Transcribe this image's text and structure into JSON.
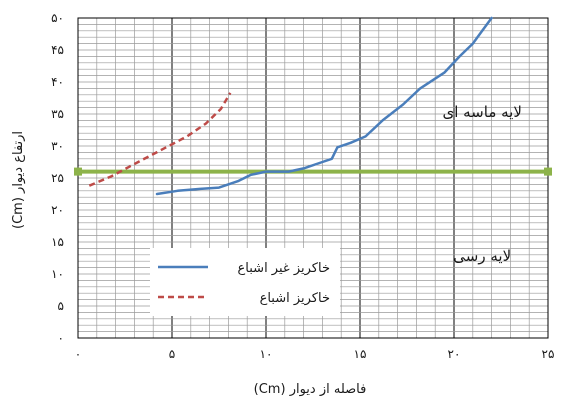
{
  "chart_data": {
    "type": "line",
    "xlabel": "فاصله از دیوار (Cm)",
    "ylabel": "ارتفاع دیوار (Cm)",
    "xlim": [
      0,
      25
    ],
    "ylim": [
      0,
      50
    ],
    "x_ticks": [
      {
        "value": 0,
        "label": "۰"
      },
      {
        "value": 5,
        "label": "۵"
      },
      {
        "value": 10,
        "label": "۱۰"
      },
      {
        "value": 15,
        "label": "۱۵"
      },
      {
        "value": 20,
        "label": "۲۰"
      },
      {
        "value": 25,
        "label": "۲۵"
      }
    ],
    "y_ticks": [
      {
        "value": 0,
        "label": "۰"
      },
      {
        "value": 5,
        "label": "۵"
      },
      {
        "value": 10,
        "label": "۱۰"
      },
      {
        "value": 15,
        "label": "۱۵"
      },
      {
        "value": 20,
        "label": "۲۰"
      },
      {
        "value": 25,
        "label": "۲۵"
      },
      {
        "value": 30,
        "label": "۳۰"
      },
      {
        "value": 35,
        "label": "۳۵"
      },
      {
        "value": 40,
        "label": "۴۰"
      },
      {
        "value": 45,
        "label": "۴۵"
      },
      {
        "value": 50,
        "label": "۵۰"
      }
    ],
    "grid": {
      "minor_step": 1,
      "major_x_step": 5
    },
    "series": [
      {
        "name": "خاکریز غیر اشباع",
        "style": "solid",
        "color": "#4a7ebb",
        "points": [
          [
            4.2,
            22.5
          ],
          [
            5.3,
            23
          ],
          [
            6.5,
            23.3
          ],
          [
            7.5,
            23.5
          ],
          [
            8.5,
            24.5
          ],
          [
            9.2,
            25.5
          ],
          [
            10,
            26
          ],
          [
            11.2,
            26
          ],
          [
            12,
            26.5
          ],
          [
            13,
            27.5
          ],
          [
            13.5,
            28
          ],
          [
            13.8,
            29.8
          ],
          [
            14.5,
            30.5
          ],
          [
            15.3,
            31.5
          ],
          [
            16.2,
            34
          ],
          [
            17.3,
            36.5
          ],
          [
            18.2,
            39
          ],
          [
            19.5,
            41.5
          ],
          [
            20.3,
            44
          ],
          [
            21,
            46
          ],
          [
            21.5,
            48
          ],
          [
            22,
            50
          ]
        ]
      },
      {
        "name": "خاکریز اشباع",
        "style": "dashed",
        "color": "#be4b48",
        "points": [
          [
            0.6,
            23.8
          ],
          [
            1.8,
            25.3
          ],
          [
            3.2,
            27.5
          ],
          [
            4.5,
            29.5
          ],
          [
            5.8,
            31.5
          ],
          [
            6.8,
            33.5
          ],
          [
            7.6,
            35.8
          ],
          [
            8.1,
            38.3
          ]
        ]
      }
    ],
    "reference_line": {
      "axis": "y",
      "value": 26,
      "color": "#8db34a"
    },
    "regions": [
      {
        "label": "لایه ماسه ای",
        "x": 21.5,
        "y": 34.5
      },
      {
        "label": "لایه رسی",
        "x": 21.5,
        "y": 12
      }
    ],
    "legend": {
      "placement": "lower-middle"
    }
  }
}
